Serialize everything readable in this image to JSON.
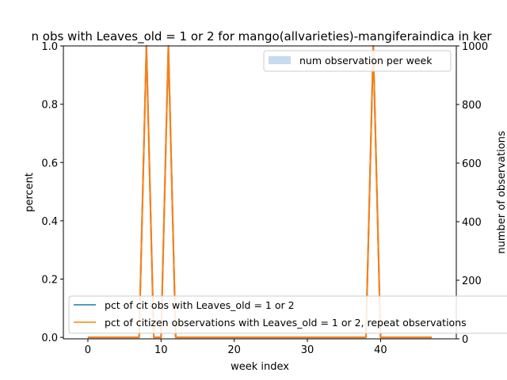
{
  "chart_data": {
    "type": "line",
    "title": "n obs with Leaves_old = 1 or 2 for mango(allvarieties)-mangiferaindica in ker",
    "xlabel": "week index",
    "ylabel": "percent",
    "y2label": "number of observations",
    "xlim": [
      -3.35,
      50.35
    ],
    "ylim": [
      -0.005,
      1.0
    ],
    "y2lim": [
      0,
      1000
    ],
    "x_ticks": [
      0,
      10,
      20,
      30,
      40
    ],
    "y_ticks": [
      0.0,
      0.2,
      0.4,
      0.6,
      0.8,
      1.0
    ],
    "y2_ticks": [
      0,
      200,
      400,
      600,
      800,
      1000
    ],
    "x": [
      0,
      1,
      2,
      3,
      4,
      5,
      6,
      7,
      8,
      9,
      10,
      11,
      12,
      13,
      14,
      15,
      16,
      17,
      18,
      19,
      20,
      21,
      22,
      23,
      24,
      25,
      26,
      27,
      28,
      29,
      30,
      31,
      32,
      33,
      34,
      35,
      36,
      37,
      38,
      39,
      40,
      41,
      42,
      43,
      44,
      45,
      46,
      47
    ],
    "series": [
      {
        "name": "pct of cit obs with Leaves_old = 1 or 2",
        "color": "#1f77b4",
        "values": [
          0,
          0,
          0,
          0,
          0,
          0,
          0,
          0,
          1,
          0,
          0,
          1,
          0,
          0,
          0,
          0,
          0,
          0,
          0,
          0,
          0,
          0,
          0,
          0,
          0,
          0,
          0,
          0,
          0,
          0,
          0,
          0,
          0,
          0,
          0,
          0,
          0,
          0,
          0,
          1,
          0,
          0,
          0,
          0,
          0,
          0,
          0,
          0
        ]
      },
      {
        "name": "pct of citizen observations with Leaves_old = 1 or 2, repeat observations",
        "color": "#ff7f0e",
        "values": [
          0,
          0,
          0,
          0,
          0,
          0,
          0,
          0,
          1,
          0,
          0,
          1,
          0,
          0,
          0,
          0,
          0,
          0,
          0,
          0,
          0,
          0,
          0,
          0,
          0,
          0,
          0,
          0,
          0,
          0,
          0,
          0,
          0,
          0,
          0,
          0,
          0,
          0,
          0,
          1,
          0,
          0,
          0,
          0,
          0,
          0,
          0,
          0
        ]
      }
    ],
    "bars": {
      "name": "num observation per week",
      "color": "#c6dbef",
      "values": [
        1,
        1,
        1,
        1,
        1,
        1,
        1,
        1,
        1,
        1,
        1,
        1,
        1,
        1,
        1,
        1,
        1,
        1,
        1,
        1,
        1,
        1,
        1,
        1,
        1,
        1,
        1,
        1,
        1,
        1,
        1,
        1,
        1,
        1,
        1,
        1,
        1,
        1,
        1,
        1,
        1,
        1,
        1,
        1,
        1,
        1,
        1,
        1
      ]
    },
    "legend_upper": "upper right",
    "legend_lower": "lower left"
  }
}
